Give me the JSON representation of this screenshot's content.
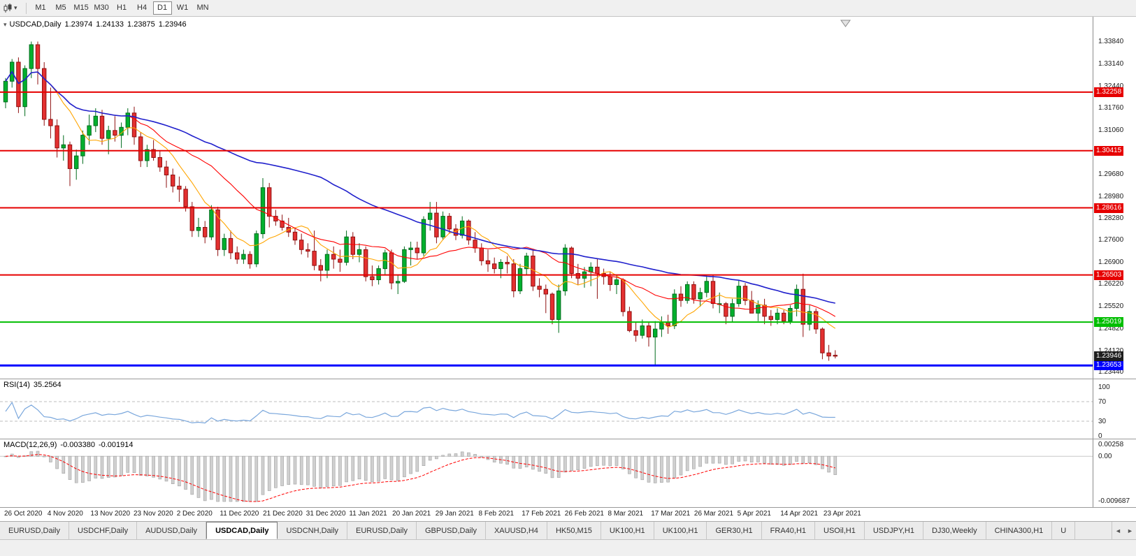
{
  "toolbar": {
    "chart_type_icon": "candlestick-chart",
    "dropdown_icon": "▾",
    "timeframes": [
      "M1",
      "M5",
      "M15",
      "M30",
      "H1",
      "H4",
      "D1",
      "W1",
      "MN"
    ],
    "active_timeframe": "D1"
  },
  "chart": {
    "collapse_arrow": "▾",
    "symbol_title": "USDCAD,Daily",
    "quote_open": "1.23974",
    "quote_high": "1.24133",
    "quote_low": "1.23875",
    "quote_close": "1.23946",
    "price_scale": [
      "1.33840",
      "1.33140",
      "1.32440",
      "1.31760",
      "1.31060",
      "1.30360",
      "1.29680",
      "1.28980",
      "1.28280",
      "1.27600",
      "1.26900",
      "1.26220",
      "1.25520",
      "1.24820",
      "1.24120",
      "1.23440"
    ],
    "levels": [
      {
        "price": 1.32258,
        "label": "1.32258",
        "color": "#E60000",
        "thickness": 2
      },
      {
        "price": 1.30415,
        "label": "1.30415",
        "color": "#E60000",
        "thickness": 2
      },
      {
        "price": 1.28616,
        "label": "1.28616",
        "color": "#E60000",
        "thickness": 2
      },
      {
        "price": 1.26503,
        "label": "1.26503",
        "color": "#E60000",
        "thickness": 2
      },
      {
        "price": 1.25019,
        "label": "1.25019",
        "color": "#00BE00",
        "thickness": 2
      },
      {
        "price": 1.23653,
        "label": "1.23653",
        "color": "#0000FF",
        "thickness": 3
      }
    ],
    "bid_tag": {
      "price": 1.23946,
      "label": "1.23946",
      "bg": "#1E1E1E"
    }
  },
  "chart_data": {
    "type": "candlestick",
    "symbol": "USDCAD",
    "timeframe": "Daily",
    "ylim": [
      1.2324,
      1.3463
    ],
    "up_color": "#00B02E",
    "up_border": "#006B1C",
    "down_color": "#E33030",
    "down_border": "#8F1010",
    "moving_averages": [
      {
        "period": 8,
        "color": "#FFA500",
        "width": 1.1
      },
      {
        "period": 20,
        "color": "#FF0000",
        "width": 1.1
      },
      {
        "period": 50,
        "color": "#2020CC",
        "width": 1.6
      }
    ],
    "x_labels": [
      "26 Oct 2020",
      "4 Nov 2020",
      "13 Nov 2020",
      "23 Nov 2020",
      "2 Dec 2020",
      "11 Dec 2020",
      "21 Dec 2020",
      "31 Dec 2020",
      "11 Jan 2021",
      "20 Jan 2021",
      "29 Jan 2021",
      "8 Feb 2021",
      "17 Feb 2021",
      "26 Feb 2021",
      "8 Mar 2021",
      "17 Mar 2021",
      "26 Mar 2021",
      "5 Apr 2021",
      "14 Apr 2021",
      "23 Apr 2021"
    ],
    "candles": [
      [
        1.3195,
        1.327,
        1.3175,
        1.326
      ],
      [
        1.326,
        1.333,
        1.324,
        1.332
      ],
      [
        1.332,
        1.3335,
        1.316,
        1.318
      ],
      [
        1.318,
        1.331,
        1.315,
        1.33
      ],
      [
        1.33,
        1.3385,
        1.327,
        1.3375
      ],
      [
        1.3375,
        1.3385,
        1.325,
        1.33
      ],
      [
        1.33,
        1.332,
        1.312,
        1.314
      ],
      [
        1.314,
        1.324,
        1.308,
        1.312
      ],
      [
        1.312,
        1.314,
        1.302,
        1.305
      ],
      [
        1.305,
        1.309,
        1.301,
        1.306
      ],
      [
        1.306,
        1.307,
        1.293,
        1.2985
      ],
      [
        1.2985,
        1.3045,
        1.295,
        1.3025
      ],
      [
        1.3025,
        1.3105,
        1.3,
        1.309
      ],
      [
        1.309,
        1.3155,
        1.306,
        1.312
      ],
      [
        1.312,
        1.3175,
        1.31,
        1.315
      ],
      [
        1.315,
        1.317,
        1.306,
        1.308
      ],
      [
        1.308,
        1.312,
        1.303,
        1.3105
      ],
      [
        1.3105,
        1.315,
        1.307,
        1.309
      ],
      [
        1.309,
        1.313,
        1.305,
        1.3115
      ],
      [
        1.3115,
        1.3175,
        1.309,
        1.316
      ],
      [
        1.316,
        1.318,
        1.306,
        1.3085
      ],
      [
        1.3085,
        1.31,
        1.299,
        1.301
      ],
      [
        1.301,
        1.306,
        1.299,
        1.3045
      ],
      [
        1.3045,
        1.3075,
        1.301,
        1.302
      ],
      [
        1.302,
        1.304,
        1.2975,
        1.299
      ],
      [
        1.299,
        1.301,
        1.2925,
        1.2965
      ],
      [
        1.2965,
        1.2985,
        1.291,
        1.293
      ],
      [
        1.293,
        1.296,
        1.288,
        1.292
      ],
      [
        1.292,
        1.293,
        1.285,
        1.2865
      ],
      [
        1.2865,
        1.288,
        1.277,
        1.279
      ],
      [
        1.279,
        1.283,
        1.277,
        1.28
      ],
      [
        1.28,
        1.282,
        1.275,
        1.277
      ],
      [
        1.277,
        1.287,
        1.276,
        1.2855
      ],
      [
        1.2855,
        1.2865,
        1.271,
        1.273
      ],
      [
        1.273,
        1.278,
        1.271,
        1.2765
      ],
      [
        1.2765,
        1.279,
        1.27,
        1.272
      ],
      [
        1.272,
        1.274,
        1.2685,
        1.27
      ],
      [
        1.27,
        1.273,
        1.2685,
        1.2715
      ],
      [
        1.2715,
        1.2725,
        1.267,
        1.2685
      ],
      [
        1.2685,
        1.279,
        1.2675,
        1.278
      ],
      [
        1.278,
        1.2955,
        1.2765,
        1.2925
      ],
      [
        1.2925,
        1.294,
        1.28,
        1.2835
      ],
      [
        1.2835,
        1.2855,
        1.2805,
        1.282
      ],
      [
        1.282,
        1.284,
        1.279,
        1.28
      ],
      [
        1.28,
        1.283,
        1.277,
        1.2785
      ],
      [
        1.2785,
        1.28,
        1.2745,
        1.276
      ],
      [
        1.276,
        1.278,
        1.2715,
        1.273
      ],
      [
        1.273,
        1.275,
        1.2705,
        1.2725
      ],
      [
        1.2725,
        1.279,
        1.2665,
        1.268
      ],
      [
        1.268,
        1.27,
        1.263,
        1.2665
      ],
      [
        1.2665,
        1.273,
        1.264,
        1.2715
      ],
      [
        1.2715,
        1.274,
        1.267,
        1.27
      ],
      [
        1.27,
        1.273,
        1.266,
        1.269
      ],
      [
        1.269,
        1.279,
        1.268,
        1.277
      ],
      [
        1.277,
        1.2785,
        1.27,
        1.2715
      ],
      [
        1.2715,
        1.275,
        1.269,
        1.273
      ],
      [
        1.273,
        1.274,
        1.263,
        1.2645
      ],
      [
        1.2645,
        1.268,
        1.2615,
        1.2635
      ],
      [
        1.2635,
        1.268,
        1.262,
        1.267
      ],
      [
        1.267,
        1.273,
        1.265,
        1.272
      ],
      [
        1.272,
        1.273,
        1.2605,
        1.2625
      ],
      [
        1.2625,
        1.265,
        1.259,
        1.263
      ],
      [
        1.263,
        1.274,
        1.2625,
        1.273
      ],
      [
        1.273,
        1.2755,
        1.268,
        1.2735
      ],
      [
        1.2735,
        1.2755,
        1.27,
        1.272
      ],
      [
        1.272,
        1.2835,
        1.271,
        1.2825
      ],
      [
        1.2825,
        1.288,
        1.279,
        1.2845
      ],
      [
        1.2845,
        1.288,
        1.275,
        1.277
      ],
      [
        1.277,
        1.285,
        1.276,
        1.2835
      ],
      [
        1.2835,
        1.2845,
        1.278,
        1.2795
      ],
      [
        1.2795,
        1.281,
        1.276,
        1.2775
      ],
      [
        1.2775,
        1.2835,
        1.2765,
        1.282
      ],
      [
        1.282,
        1.2825,
        1.2745,
        1.276
      ],
      [
        1.276,
        1.2785,
        1.272,
        1.2735
      ],
      [
        1.2735,
        1.275,
        1.268,
        1.2695
      ],
      [
        1.2695,
        1.273,
        1.266,
        1.2685
      ],
      [
        1.2685,
        1.2705,
        1.2655,
        1.267
      ],
      [
        1.267,
        1.27,
        1.264,
        1.269
      ],
      [
        1.269,
        1.271,
        1.2655,
        1.2685
      ],
      [
        1.2685,
        1.27,
        1.258,
        1.26
      ],
      [
        1.26,
        1.2685,
        1.259,
        1.267
      ],
      [
        1.267,
        1.272,
        1.265,
        1.271
      ],
      [
        1.271,
        1.273,
        1.26,
        1.2615
      ],
      [
        1.2615,
        1.264,
        1.258,
        1.2605
      ],
      [
        1.2605,
        1.262,
        1.253,
        1.259
      ],
      [
        1.259,
        1.2595,
        1.2495,
        1.251
      ],
      [
        1.251,
        1.262,
        1.2468,
        1.26
      ],
      [
        1.26,
        1.2747,
        1.2585,
        1.2735
      ],
      [
        1.2735,
        1.274,
        1.264,
        1.2655
      ],
      [
        1.2655,
        1.2685,
        1.262,
        1.264
      ],
      [
        1.264,
        1.2675,
        1.261,
        1.266
      ],
      [
        1.266,
        1.269,
        1.2615,
        1.2675
      ],
      [
        1.2675,
        1.27,
        1.2575,
        1.2655
      ],
      [
        1.2655,
        1.267,
        1.262,
        1.2645
      ],
      [
        1.2645,
        1.266,
        1.26,
        1.262
      ],
      [
        1.262,
        1.265,
        1.259,
        1.2635
      ],
      [
        1.2635,
        1.264,
        1.252,
        1.2535
      ],
      [
        1.2535,
        1.255,
        1.247,
        1.2475
      ],
      [
        1.2475,
        1.25,
        1.244,
        1.246
      ],
      [
        1.246,
        1.251,
        1.245,
        1.249
      ],
      [
        1.249,
        1.25,
        1.2425,
        1.2455
      ],
      [
        1.2455,
        1.2505,
        1.23653,
        1.248
      ],
      [
        1.248,
        1.252,
        1.2455,
        1.25
      ],
      [
        1.25,
        1.2525,
        1.2465,
        1.249
      ],
      [
        1.249,
        1.2605,
        1.248,
        1.259
      ],
      [
        1.259,
        1.2615,
        1.255,
        1.257
      ],
      [
        1.257,
        1.263,
        1.256,
        1.262
      ],
      [
        1.262,
        1.263,
        1.256,
        1.2575
      ],
      [
        1.2575,
        1.261,
        1.255,
        1.2595
      ],
      [
        1.2595,
        1.265,
        1.258,
        1.263
      ],
      [
        1.263,
        1.265,
        1.2545,
        1.256
      ],
      [
        1.256,
        1.2595,
        1.253,
        1.256
      ],
      [
        1.256,
        1.2565,
        1.2495,
        1.252
      ],
      [
        1.252,
        1.2575,
        1.25,
        1.256
      ],
      [
        1.256,
        1.2635,
        1.255,
        1.2615
      ],
      [
        1.2615,
        1.2625,
        1.2555,
        1.257
      ],
      [
        1.257,
        1.26,
        1.253,
        1.253
      ],
      [
        1.253,
        1.257,
        1.2505,
        1.2555
      ],
      [
        1.2555,
        1.2575,
        1.2495,
        1.252
      ],
      [
        1.252,
        1.254,
        1.249,
        1.251
      ],
      [
        1.251,
        1.2545,
        1.2495,
        1.253
      ],
      [
        1.253,
        1.254,
        1.2495,
        1.2505
      ],
      [
        1.2505,
        1.2555,
        1.2495,
        1.2545
      ],
      [
        1.2545,
        1.262,
        1.252,
        1.2605
      ],
      [
        1.2605,
        1.2654,
        1.2455,
        1.2495
      ],
      [
        1.2495,
        1.2555,
        1.2475,
        1.2535
      ],
      [
        1.2535,
        1.2545,
        1.2465,
        1.248
      ],
      [
        1.248,
        1.2485,
        1.2385,
        1.2405
      ],
      [
        1.2405,
        1.243,
        1.238,
        1.2395
      ],
      [
        1.23974,
        1.24133,
        1.23875,
        1.23946
      ]
    ]
  },
  "rsi": {
    "name": "RSI(14)",
    "value": "35.2564",
    "period": 14,
    "line_color": "#7AA7DC",
    "scale_labels": [
      "100",
      "70",
      "30",
      "0"
    ],
    "scale_values": [
      100,
      70,
      30,
      0
    ],
    "guides": [
      70,
      30
    ],
    "ylim": [
      0,
      100
    ]
  },
  "macd": {
    "name": "MACD(12,26,9)",
    "macd_value": "-0.003380",
    "signal_value": "-0.001914",
    "fast": 12,
    "slow": 26,
    "signal": 9,
    "scale_top": "0.00258",
    "scale_zero": "0.00",
    "scale_bottom": "-0.009687",
    "ylim": [
      -0.009687,
      0.00258
    ],
    "hist_color": "#D0D0D0",
    "hist_border": "#A0A0A0",
    "signal_color": "#FF0000"
  },
  "tabs": {
    "items": [
      {
        "label": "EURUSD,Daily",
        "active": false
      },
      {
        "label": "USDCHF,Daily",
        "active": false
      },
      {
        "label": "AUDUSD,Daily",
        "active": false
      },
      {
        "label": "USDCAD,Daily",
        "active": true
      },
      {
        "label": "USDCNH,Daily",
        "active": false
      },
      {
        "label": "EURUSD,Daily",
        "active": false
      },
      {
        "label": "GBPUSD,Daily",
        "active": false
      },
      {
        "label": "XAUUSD,H4",
        "active": false
      },
      {
        "label": "HK50,M15",
        "active": false
      },
      {
        "label": "UK100,H1",
        "active": false
      },
      {
        "label": "UK100,H1",
        "active": false
      },
      {
        "label": "GER30,H1",
        "active": false
      },
      {
        "label": "FRA40,H1",
        "active": false
      },
      {
        "label": "USOil,H1",
        "active": false
      },
      {
        "label": "USDJPY,H1",
        "active": false
      },
      {
        "label": "DJ30,Weekly",
        "active": false
      },
      {
        "label": "CHINA300,H1",
        "active": false
      },
      {
        "label": "U",
        "active": false
      }
    ],
    "scroll_left": "◄",
    "scroll_right": "►"
  }
}
